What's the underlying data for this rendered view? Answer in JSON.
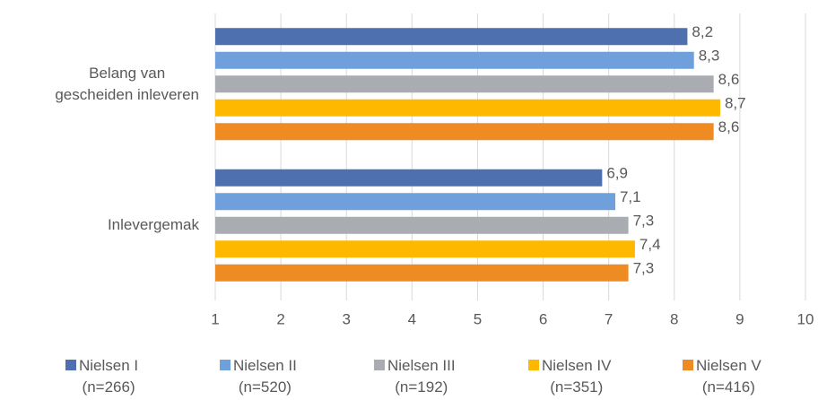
{
  "chart_data": {
    "type": "bar",
    "orientation": "horizontal",
    "categories": [
      "Belang van\ngescheiden inleveren",
      "Inlevergemak"
    ],
    "series": [
      {
        "name": "Nielsen I\n(n=266)",
        "color": "#4e70ae",
        "values": [
          8.2,
          6.9
        ],
        "value_labels": [
          "8,2",
          "6,9"
        ]
      },
      {
        "name": "Nielsen II\n(n=520)",
        "color": "#70a0dc",
        "values": [
          8.3,
          7.1
        ],
        "value_labels": [
          "8,3",
          "7,1"
        ]
      },
      {
        "name": "Nielsen III\n(n=192)",
        "color": "#a9adb2",
        "values": [
          8.6,
          7.3
        ],
        "value_labels": [
          "8,6",
          "7,3"
        ]
      },
      {
        "name": "Nielsen IV\n(n=351)",
        "color": "#ffb800",
        "values": [
          8.7,
          7.4
        ],
        "value_labels": [
          "8,7",
          "7,4"
        ]
      },
      {
        "name": "Nielsen V\n(n=416)",
        "color": "#ee8b22",
        "values": [
          8.6,
          7.3
        ],
        "value_labels": [
          "8,6",
          "7,3"
        ]
      }
    ],
    "xlim": [
      1,
      10
    ],
    "xticks": [
      1,
      2,
      3,
      4,
      5,
      6,
      7,
      8,
      9,
      10
    ],
    "grid": true,
    "legend": "bottom"
  }
}
